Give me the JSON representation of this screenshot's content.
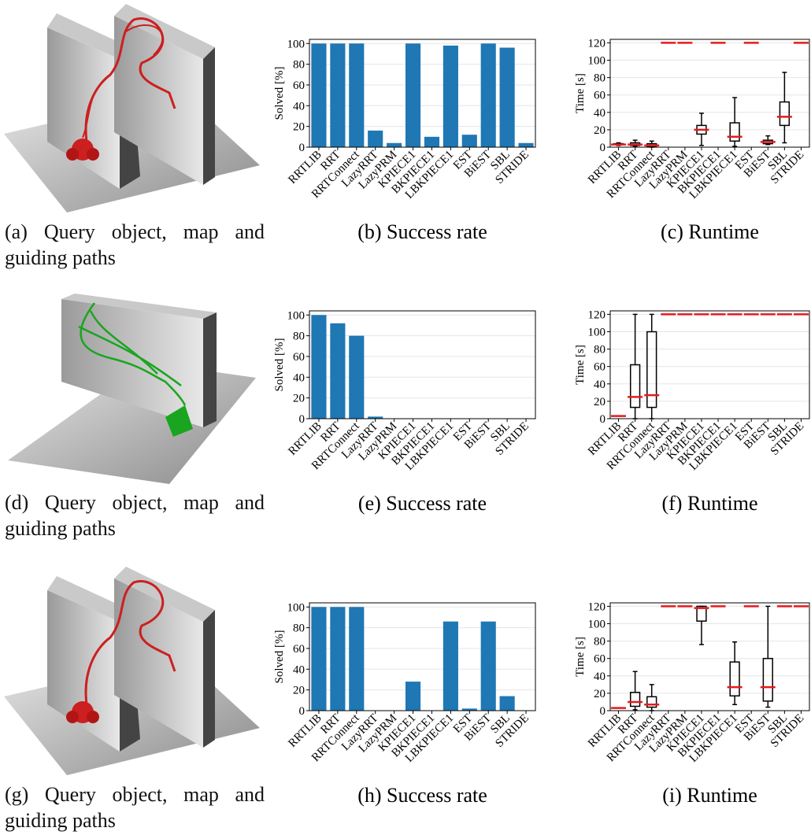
{
  "renders": [
    {
      "caption": "(a) Query object, map and guiding paths"
    },
    {
      "caption": "(d) Query object, map and guiding paths"
    },
    {
      "caption": "(g) Query object, map and guiding paths"
    }
  ],
  "chart_data": [
    {
      "type": "bar",
      "caption": "(b) Success rate",
      "ylabel": "Solved [%]",
      "categories": [
        "RRTLIB",
        "RRT",
        "RRTConnect",
        "LazyRRT",
        "LazyPRM",
        "KPIECE1",
        "BKPIECE1",
        "LBKPIECE1",
        "EST",
        "BiEST",
        "SBL",
        "STRIDE"
      ],
      "values": [
        100,
        100,
        100,
        16,
        4,
        100,
        10,
        98,
        12,
        100,
        96,
        4
      ],
      "color": "#1f77b4",
      "ylim": [
        0,
        104
      ],
      "yticks": [
        0,
        20,
        40,
        60,
        80,
        100
      ],
      "grid": true
    },
    {
      "type": "box",
      "caption": "(c) Runtime",
      "ylabel": "Time [s]",
      "categories": [
        "RRTLIB",
        "RRT",
        "RRTConnect",
        "LazyRRT",
        "LazyPRM",
        "KPIECE1",
        "BKPIECE1",
        "LBKPIECE1",
        "EST",
        "BiEST",
        "SBL",
        "STRIDE"
      ],
      "boxes": [
        {
          "whislo": 2,
          "q1": 3,
          "med": 3,
          "q3": 4,
          "whishi": 5
        },
        {
          "whislo": 1,
          "q1": 2,
          "med": 3,
          "q3": 5,
          "whishi": 8
        },
        {
          "whislo": 0,
          "q1": 1,
          "med": 2,
          "q3": 4,
          "whishi": 7
        },
        {
          "whislo": 120,
          "q1": 120,
          "med": 120,
          "q3": 120,
          "whishi": 120
        },
        {
          "whislo": 120,
          "q1": 120,
          "med": 120,
          "q3": 120,
          "whishi": 120
        },
        {
          "whislo": 2,
          "q1": 15,
          "med": 20,
          "q3": 25,
          "whishi": 39
        },
        {
          "whislo": 120,
          "q1": 120,
          "med": 120,
          "q3": 120,
          "whishi": 120
        },
        {
          "whislo": 1,
          "q1": 7,
          "med": 12,
          "q3": 28,
          "whishi": 57
        },
        {
          "whislo": 120,
          "q1": 120,
          "med": 120,
          "q3": 120,
          "whishi": 120
        },
        {
          "whislo": 3,
          "q1": 4,
          "med": 6,
          "q3": 8,
          "whishi": 13
        },
        {
          "whislo": 5,
          "q1": 25,
          "med": 35,
          "q3": 52,
          "whishi": 86
        },
        {
          "whislo": 120,
          "q1": 120,
          "med": 120,
          "q3": 120,
          "whishi": 120
        }
      ],
      "median_color": "#e41a1c",
      "ylim": [
        0,
        124
      ],
      "yticks": [
        0,
        20,
        40,
        60,
        80,
        100,
        120
      ],
      "grid": true
    },
    {
      "type": "bar",
      "caption": "(e) Success rate",
      "ylabel": "Solved [%]",
      "categories": [
        "RRTLIB",
        "RRT",
        "RRTConnect",
        "LazyRRT",
        "LazyPRM",
        "KPIECE1",
        "BKPIECE1",
        "LBKPIECE1",
        "EST",
        "BiEST",
        "SBL",
        "STRIDE"
      ],
      "values": [
        100,
        92,
        80,
        2,
        0,
        0,
        0,
        0,
        0,
        0,
        0,
        0
      ],
      "color": "#1f77b4",
      "ylim": [
        0,
        104
      ],
      "yticks": [
        0,
        20,
        40,
        60,
        80,
        100
      ],
      "grid": true
    },
    {
      "type": "box",
      "caption": "(f) Runtime",
      "ylabel": "Time [s]",
      "categories": [
        "RRTLIB",
        "RRT",
        "RRTConnect",
        "LazyRRT",
        "LazyPRM",
        "KPIECE1",
        "BKPIECE1",
        "LBKPIECE1",
        "EST",
        "BiEST",
        "SBL",
        "STRIDE"
      ],
      "boxes": [
        {
          "whislo": 3,
          "q1": 3,
          "med": 3,
          "q3": 3,
          "whishi": 3
        },
        {
          "whislo": 0,
          "q1": 13,
          "med": 25,
          "q3": 62,
          "whishi": 120
        },
        {
          "whislo": 0,
          "q1": 13,
          "med": 27,
          "q3": 100,
          "whishi": 120
        },
        {
          "whislo": 120,
          "q1": 120,
          "med": 120,
          "q3": 120,
          "whishi": 120
        },
        {
          "whislo": 120,
          "q1": 120,
          "med": 120,
          "q3": 120,
          "whishi": 120
        },
        {
          "whislo": 120,
          "q1": 120,
          "med": 120,
          "q3": 120,
          "whishi": 120
        },
        {
          "whislo": 120,
          "q1": 120,
          "med": 120,
          "q3": 120,
          "whishi": 120
        },
        {
          "whislo": 120,
          "q1": 120,
          "med": 120,
          "q3": 120,
          "whishi": 120
        },
        {
          "whislo": 120,
          "q1": 120,
          "med": 120,
          "q3": 120,
          "whishi": 120
        },
        {
          "whislo": 120,
          "q1": 120,
          "med": 120,
          "q3": 120,
          "whishi": 120
        },
        {
          "whislo": 120,
          "q1": 120,
          "med": 120,
          "q3": 120,
          "whishi": 120
        },
        {
          "whislo": 120,
          "q1": 120,
          "med": 120,
          "q3": 120,
          "whishi": 120
        }
      ],
      "median_color": "#e41a1c",
      "ylim": [
        0,
        124
      ],
      "yticks": [
        0,
        20,
        40,
        60,
        80,
        100,
        120
      ],
      "grid": true
    },
    {
      "type": "bar",
      "caption": "(h) Success rate",
      "ylabel": "Solved [%]",
      "categories": [
        "RRTLIB",
        "RRT",
        "RRTConnect",
        "LazyRRT",
        "LazyPRM",
        "KPIECE1",
        "BKPIECE1",
        "LBKPIECE1",
        "EST",
        "BiEST",
        "SBL",
        "STRIDE"
      ],
      "values": [
        100,
        100,
        100,
        0,
        0,
        28,
        0,
        86,
        2,
        86,
        14,
        0
      ],
      "color": "#1f77b4",
      "ylim": [
        0,
        104
      ],
      "yticks": [
        0,
        20,
        40,
        60,
        80,
        100
      ],
      "grid": true
    },
    {
      "type": "box",
      "caption": "(i) Runtime",
      "ylabel": "Time [s]",
      "categories": [
        "RRTLIB",
        "RRT",
        "RRTConnect",
        "LazyRRT",
        "LazyPRM",
        "KPIECE1",
        "BKPIECE1",
        "LBKPIECE1",
        "EST",
        "BiEST",
        "SBL",
        "STRIDE"
      ],
      "boxes": [
        {
          "whislo": 3,
          "q1": 3,
          "med": 3,
          "q3": 3,
          "whishi": 3
        },
        {
          "whislo": 1,
          "q1": 5,
          "med": 10,
          "q3": 21,
          "whishi": 45
        },
        {
          "whislo": 0,
          "q1": 4,
          "med": 7,
          "q3": 16,
          "whishi": 30
        },
        {
          "whislo": 120,
          "q1": 120,
          "med": 120,
          "q3": 120,
          "whishi": 120
        },
        {
          "whislo": 120,
          "q1": 120,
          "med": 120,
          "q3": 120,
          "whishi": 120
        },
        {
          "whislo": 76,
          "q1": 103,
          "med": 118,
          "q3": 120,
          "whishi": 120
        },
        {
          "whislo": 120,
          "q1": 120,
          "med": 120,
          "q3": 120,
          "whishi": 120
        },
        {
          "whislo": 7,
          "q1": 17,
          "med": 27,
          "q3": 56,
          "whishi": 79
        },
        {
          "whislo": 120,
          "q1": 120,
          "med": 120,
          "q3": 120,
          "whishi": 120
        },
        {
          "whislo": 4,
          "q1": 11,
          "med": 27,
          "q3": 60,
          "whishi": 120
        },
        {
          "whislo": 120,
          "q1": 120,
          "med": 120,
          "q3": 120,
          "whishi": 120
        },
        {
          "whislo": 120,
          "q1": 120,
          "med": 120,
          "q3": 120,
          "whishi": 120
        }
      ],
      "median_color": "#e41a1c",
      "ylim": [
        0,
        124
      ],
      "yticks": [
        0,
        20,
        40,
        60,
        80,
        100,
        120
      ],
      "grid": true
    }
  ]
}
